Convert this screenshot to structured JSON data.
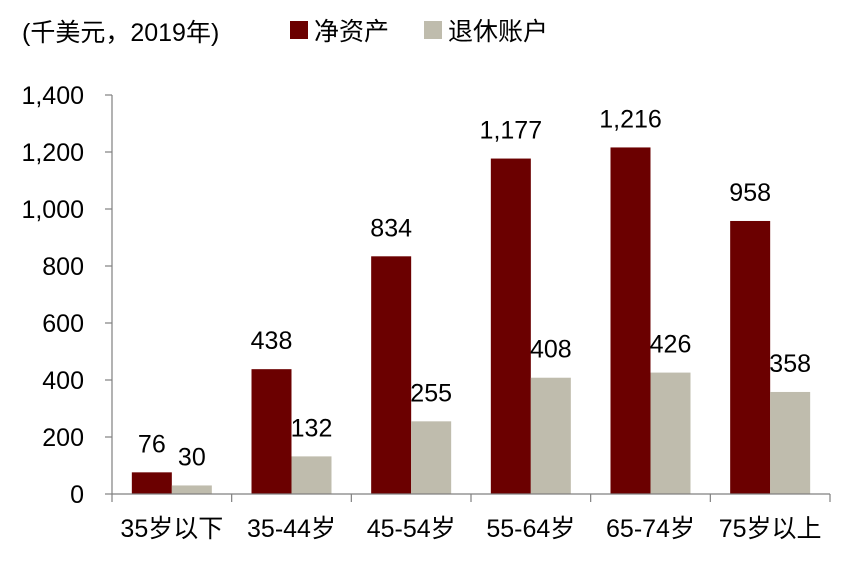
{
  "chart_data": {
    "type": "bar",
    "unit_label": "(千美元，2019年)",
    "categories": [
      "35岁以下",
      "35-44岁",
      "45-54岁",
      "55-64岁",
      "65-74岁",
      "75岁以上"
    ],
    "series": [
      {
        "name": "净资产",
        "color": "#6b0000",
        "values": [
          76,
          438,
          834,
          1177,
          1216,
          958
        ],
        "labels": [
          "76",
          "438",
          "834",
          "1,177",
          "1,216",
          "958"
        ]
      },
      {
        "name": "退休账户",
        "color": "#bfbcad",
        "values": [
          30,
          132,
          255,
          408,
          426,
          358
        ],
        "labels": [
          "30",
          "132",
          "255",
          "408",
          "426",
          "358"
        ]
      }
    ],
    "yticks": [
      0,
      200,
      400,
      600,
      800,
      1000,
      1200,
      1400
    ],
    "ytick_labels": [
      "0",
      "200",
      "400",
      "600",
      "800",
      "1,000",
      "1,200",
      "1,400"
    ],
    "ylim": [
      0,
      1400
    ],
    "grid": false,
    "legend_position": "top"
  }
}
